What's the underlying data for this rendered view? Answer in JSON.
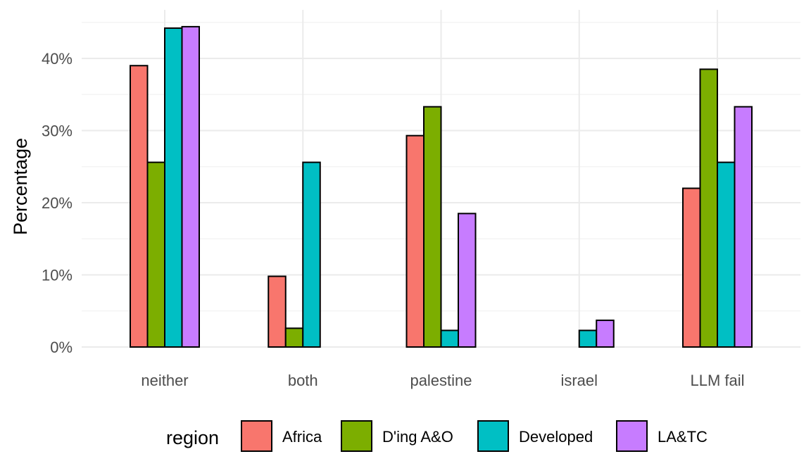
{
  "chart_data": {
    "type": "bar",
    "categories": [
      "neither",
      "both",
      "palestine",
      "israel",
      "LLM fail"
    ],
    "series": [
      {
        "name": "Africa",
        "color": "#F8766D",
        "values": [
          39.0,
          9.8,
          29.3,
          0,
          22.0
        ]
      },
      {
        "name": "D'ing A&O",
        "color": "#7CAE00",
        "values": [
          25.6,
          2.6,
          33.3,
          0,
          38.5
        ]
      },
      {
        "name": "Developed",
        "color": "#00BFC4",
        "values": [
          44.2,
          25.6,
          2.3,
          2.3,
          25.6
        ]
      },
      {
        "name": "LA&TC",
        "color": "#C77CFF",
        "values": [
          44.4,
          0,
          18.5,
          3.7,
          33.3
        ]
      }
    ],
    "xlabel": "",
    "ylabel": "Percentage",
    "ylim": [
      0,
      45
    ],
    "yticks": [
      0,
      10,
      20,
      30,
      40
    ],
    "ytick_labels": [
      "0%",
      "10%",
      "20%",
      "30%",
      "40%"
    ],
    "legend_title": "region",
    "legend_position": "bottom",
    "grid": true
  }
}
